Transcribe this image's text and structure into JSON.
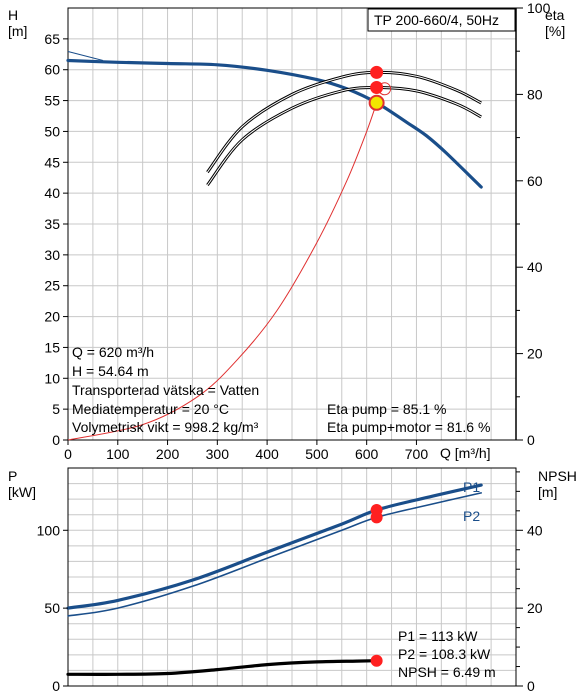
{
  "chart_data": [
    {
      "type": "line",
      "title": "TP 200-660/4, 50Hz",
      "xlabel": "Q [m³/h]",
      "ylabel": "H\n[m]",
      "ylabel_right": "eta\n[%]",
      "xlim": [
        0,
        900
      ],
      "ylim": [
        0,
        70
      ],
      "y2lim": [
        0,
        100
      ],
      "x_ticks": [
        "0",
        "100",
        "200",
        "300",
        "400",
        "500",
        "600",
        "700"
      ],
      "y_ticks": [
        "0",
        "5",
        "10",
        "15",
        "20",
        "25",
        "30",
        "35",
        "40",
        "45",
        "50",
        "55",
        "60",
        "65"
      ],
      "y2_ticks": [
        "0",
        "20",
        "40",
        "60",
        "80",
        "100"
      ],
      "grid": true,
      "series": [
        {
          "role": "head",
          "color": "#1a4e8a",
          "x": [
            0,
            100,
            200,
            300,
            400,
            500,
            560,
            620,
            680,
            720,
            760,
            830
          ],
          "y": [
            61.5,
            61.2,
            61.0,
            60.8,
            59.9,
            58.4,
            56.9,
            54.64,
            51.5,
            49.3,
            46.5,
            41.0
          ]
        },
        {
          "role": "efficiency pump",
          "color": "#000000",
          "x": [
            280,
            350,
            450,
            550,
            620,
            700,
            780,
            830
          ],
          "y": [
            62.0,
            72.5,
            80.0,
            84.0,
            85.1,
            84.2,
            81.0,
            78.0
          ]
        },
        {
          "role": "efficiency pump+motor",
          "color": "#000000",
          "x": [
            280,
            350,
            450,
            550,
            620,
            700,
            780,
            830
          ],
          "y": [
            59.0,
            69.5,
            76.8,
            80.8,
            81.6,
            80.8,
            77.8,
            74.8
          ]
        },
        {
          "role": "system curve",
          "color": "#e03030",
          "x": [
            0,
            150,
            260,
            340,
            420,
            500,
            560,
            600,
            620
          ],
          "y": [
            0,
            2.5,
            7.0,
            13.0,
            21.0,
            32.0,
            42.0,
            50.0,
            54.64
          ]
        }
      ],
      "operating_point": {
        "x": 620,
        "y": 54.64
      },
      "readout": {
        "q": "Q = 620 m³/h",
        "h": "H = 54.64 m",
        "fluid": "Transporterad vätska = Vatten",
        "temp": "Mediatemperatur = 20 °C",
        "density": "Volymetrisk vikt = 998.2 kg/m³",
        "eta_pump": "Eta pump = 85.1 %",
        "eta_total": "Eta pump+motor = 81.6 %"
      }
    },
    {
      "type": "line",
      "xlabel": "",
      "ylabel": "P\n[kW]",
      "ylabel_right": "NPSH\n[m]",
      "xlim": [
        0,
        900
      ],
      "ylim": [
        0,
        140
      ],
      "y2lim": [
        0,
        56
      ],
      "y_ticks": [
        "0",
        "50",
        "100"
      ],
      "y2_ticks": [
        "0",
        "20",
        "40"
      ],
      "grid": true,
      "series": [
        {
          "name": "P1",
          "color": "#1a4e8a",
          "x": [
            0,
            100,
            250,
            400,
            550,
            620,
            720,
            830
          ],
          "y": [
            50,
            55,
            68,
            86,
            104,
            113,
            121,
            129
          ]
        },
        {
          "name": "P2",
          "color": "#1a4e8a",
          "x": [
            0,
            100,
            250,
            400,
            550,
            620,
            720,
            830
          ],
          "y": [
            45,
            50,
            64,
            82,
            100,
            108.3,
            116,
            124
          ]
        },
        {
          "role": "NPSH",
          "color": "#000000",
          "x": [
            0,
            100,
            200,
            300,
            400,
            500,
            580,
            620
          ],
          "y": [
            3.0,
            3.0,
            3.2,
            4.2,
            5.5,
            6.2,
            6.4,
            6.49
          ]
        }
      ],
      "operating_point": {
        "x": 620
      },
      "readout": {
        "p1": "P1 = 113 kW",
        "p2": "P2 = 108.3 kW",
        "npsh": "NPSH = 6.49 m"
      }
    }
  ]
}
